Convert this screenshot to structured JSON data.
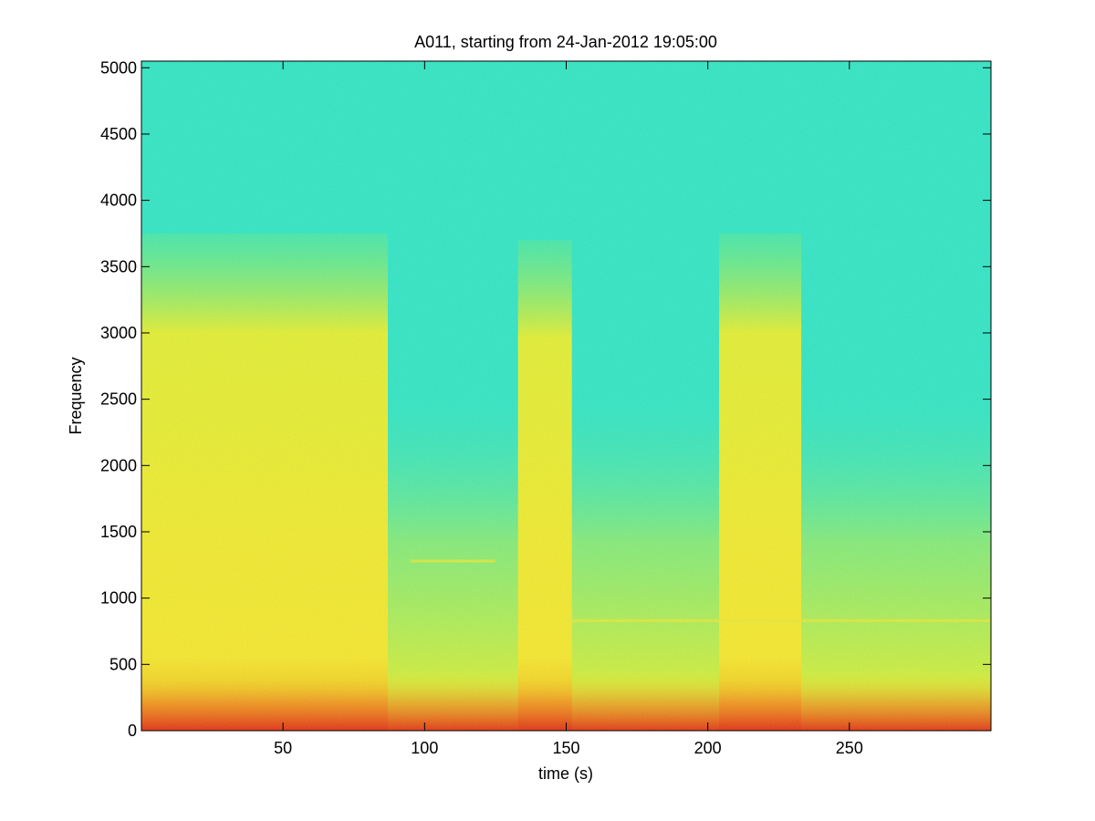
{
  "chart_data": {
    "type": "heatmap",
    "title": "A011, starting from 24-Jan-2012 19:05:00",
    "xlabel": "time (s)",
    "ylabel": "Frequency",
    "xlim": [
      0,
      300
    ],
    "ylim": [
      0,
      5050
    ],
    "x_ticks": [
      50,
      100,
      150,
      200,
      250
    ],
    "y_ticks": [
      0,
      500,
      1000,
      1500,
      2000,
      2500,
      3000,
      3500,
      4000,
      4500,
      5000
    ],
    "colormap": "jet",
    "grid": false,
    "legend": "none",
    "high_energy_bands": [
      {
        "start": 0,
        "end": 87,
        "max_freq": 3750
      },
      {
        "start": 133,
        "end": 152,
        "max_freq": 3700
      },
      {
        "start": 204,
        "end": 233,
        "max_freq": 3750
      }
    ],
    "tonal_lines": [
      {
        "freq": 830,
        "start": 150,
        "end": 300
      },
      {
        "freq": 1280,
        "start": 95,
        "end": 125
      }
    ],
    "colors": {
      "background_low": "#30e6c4",
      "mid": "#f2f020",
      "high": "#e83010"
    }
  }
}
